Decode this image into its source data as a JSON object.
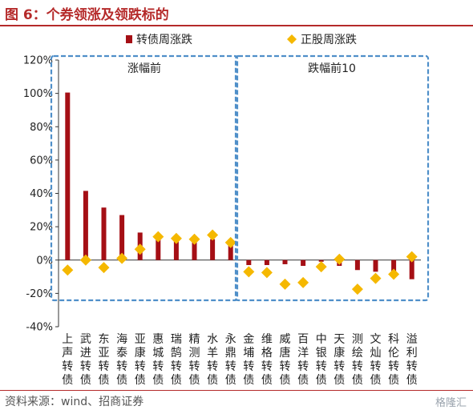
{
  "figure_title": "图 6：个券领涨及领跌标的",
  "source_note": "资料来源：wind、招商证券",
  "watermark": "格隆汇",
  "colors": {
    "bar": "#a50f15",
    "marker": "#f5b800",
    "box": "#4f8fc9",
    "title": "#b52a2a"
  },
  "chart_data": {
    "type": "bar",
    "ylim": [
      -40,
      120
    ],
    "yticks": [
      -40,
      -20,
      0,
      20,
      40,
      60,
      80,
      100,
      120
    ],
    "ytick_labels": [
      "-40%",
      "-20%",
      "0%",
      "20%",
      "40%",
      "60%",
      "80%",
      "100%",
      "120%"
    ],
    "categories": [
      "上声转债",
      "武进转债",
      "东亚转债",
      "海泰转债",
      "亚康转债",
      "惠城转债",
      "瑞鹄转债",
      "精测转债",
      "水羊转债",
      "永鼎转债",
      "金埔转债",
      "维格转债",
      "威唐转债",
      "百洋转债",
      "中银转债",
      "天康转债",
      "测绘转债",
      "文灿转债",
      "科伦转债",
      "溢利转债"
    ],
    "series": [
      {
        "name": "转债周涨跌",
        "kind": "bar",
        "values": [
          100.5,
          41.5,
          31.5,
          27,
          16.5,
          14.5,
          13,
          13,
          12.5,
          12,
          -3,
          -3,
          -2.5,
          -3.5,
          -1,
          -3.5,
          -6,
          -7,
          -7,
          -11.5
        ]
      },
      {
        "name": "正股周涨跌",
        "kind": "marker",
        "values": [
          -6,
          0,
          -4.5,
          1,
          6.5,
          14,
          13,
          12.5,
          15,
          10.5,
          -7,
          -7.5,
          -14.5,
          -13.5,
          -4,
          0.5,
          -17.5,
          -11,
          -8.5,
          2
        ]
      }
    ],
    "groups": [
      {
        "label": "涨幅前",
        "range": [
          0,
          9
        ]
      },
      {
        "label": "跌幅前10",
        "range": [
          10,
          19
        ]
      }
    ],
    "legend_position": "top",
    "grid": false
  }
}
